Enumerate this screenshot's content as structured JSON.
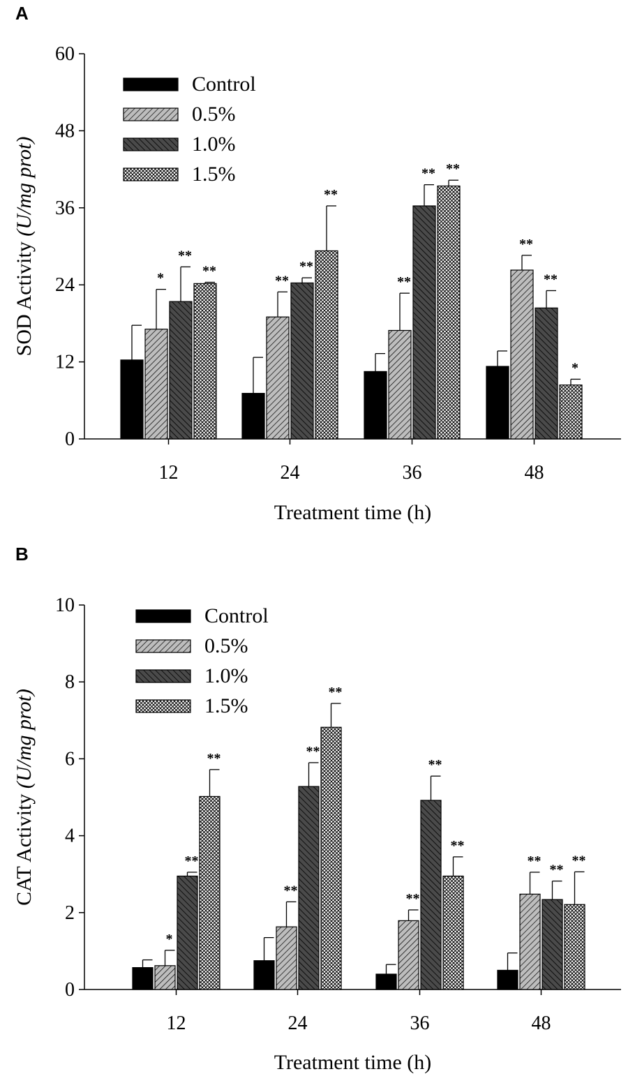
{
  "colors": {
    "control": "#000000",
    "low": "#bdbdbd",
    "mid": "#4a4a4a",
    "high": "#ffffff",
    "stroke": "#000000"
  },
  "chart_data": [
    {
      "panel": "A",
      "type": "bar",
      "ylabel_main": "SOD Activity",
      "ylabel_unit": "(U/mg prot)",
      "xlabel": "Treatment time (h)",
      "ylim": [
        0,
        60
      ],
      "yticks": [
        0,
        12,
        24,
        36,
        48,
        60
      ],
      "categories": [
        "12",
        "24",
        "36",
        "48"
      ],
      "legend_position": "top-left",
      "series": [
        {
          "name": "Control",
          "values": [
            12.3,
            7.1,
            10.5,
            11.3
          ],
          "errors": [
            5.4,
            5.6,
            2.8,
            2.4
          ],
          "sig": [
            "",
            "",
            "",
            ""
          ]
        },
        {
          "name": "0.5%",
          "values": [
            17.1,
            19.0,
            16.9,
            26.3
          ],
          "errors": [
            6.2,
            3.9,
            5.8,
            2.3
          ],
          "sig": [
            "*",
            "**",
            "**",
            "**"
          ]
        },
        {
          "name": "1.0%",
          "values": [
            21.4,
            24.3,
            36.3,
            20.4
          ],
          "errors": [
            5.4,
            0.8,
            3.3,
            2.7
          ],
          "sig": [
            "**",
            "**",
            "**",
            "**"
          ]
        },
        {
          "name": "1.5%",
          "values": [
            24.2,
            29.3,
            39.4,
            8.4
          ],
          "errors": [
            0.2,
            7.0,
            0.9,
            0.9
          ],
          "sig": [
            "**",
            "**",
            "**",
            "*"
          ]
        }
      ]
    },
    {
      "panel": "B",
      "type": "bar",
      "ylabel_main": "CAT Activity",
      "ylabel_unit": "(U/mg prot)",
      "xlabel": "Treatment time (h)",
      "ylim": [
        0,
        10
      ],
      "yticks": [
        0,
        2,
        4,
        6,
        8,
        10
      ],
      "categories": [
        "12",
        "24",
        "36",
        "48"
      ],
      "legend_position": "top-left",
      "series": [
        {
          "name": "Control",
          "values": [
            0.57,
            0.75,
            0.4,
            0.5
          ],
          "errors": [
            0.2,
            0.6,
            0.25,
            0.45
          ],
          "sig": [
            "",
            "",
            "",
            ""
          ]
        },
        {
          "name": "0.5%",
          "values": [
            0.62,
            1.63,
            1.79,
            2.48
          ],
          "errors": [
            0.4,
            0.65,
            0.28,
            0.57
          ],
          "sig": [
            "*",
            "**",
            "**",
            "**"
          ]
        },
        {
          "name": "1.0%",
          "values": [
            2.95,
            5.28,
            4.92,
            2.34
          ],
          "errors": [
            0.1,
            0.62,
            0.63,
            0.48
          ],
          "sig": [
            "**",
            "**",
            "**",
            "**"
          ]
        },
        {
          "name": "1.5%",
          "values": [
            5.02,
            6.82,
            2.95,
            2.21
          ],
          "errors": [
            0.7,
            0.62,
            0.5,
            0.85
          ],
          "sig": [
            "**",
            "**",
            "**",
            "**"
          ]
        }
      ]
    }
  ]
}
